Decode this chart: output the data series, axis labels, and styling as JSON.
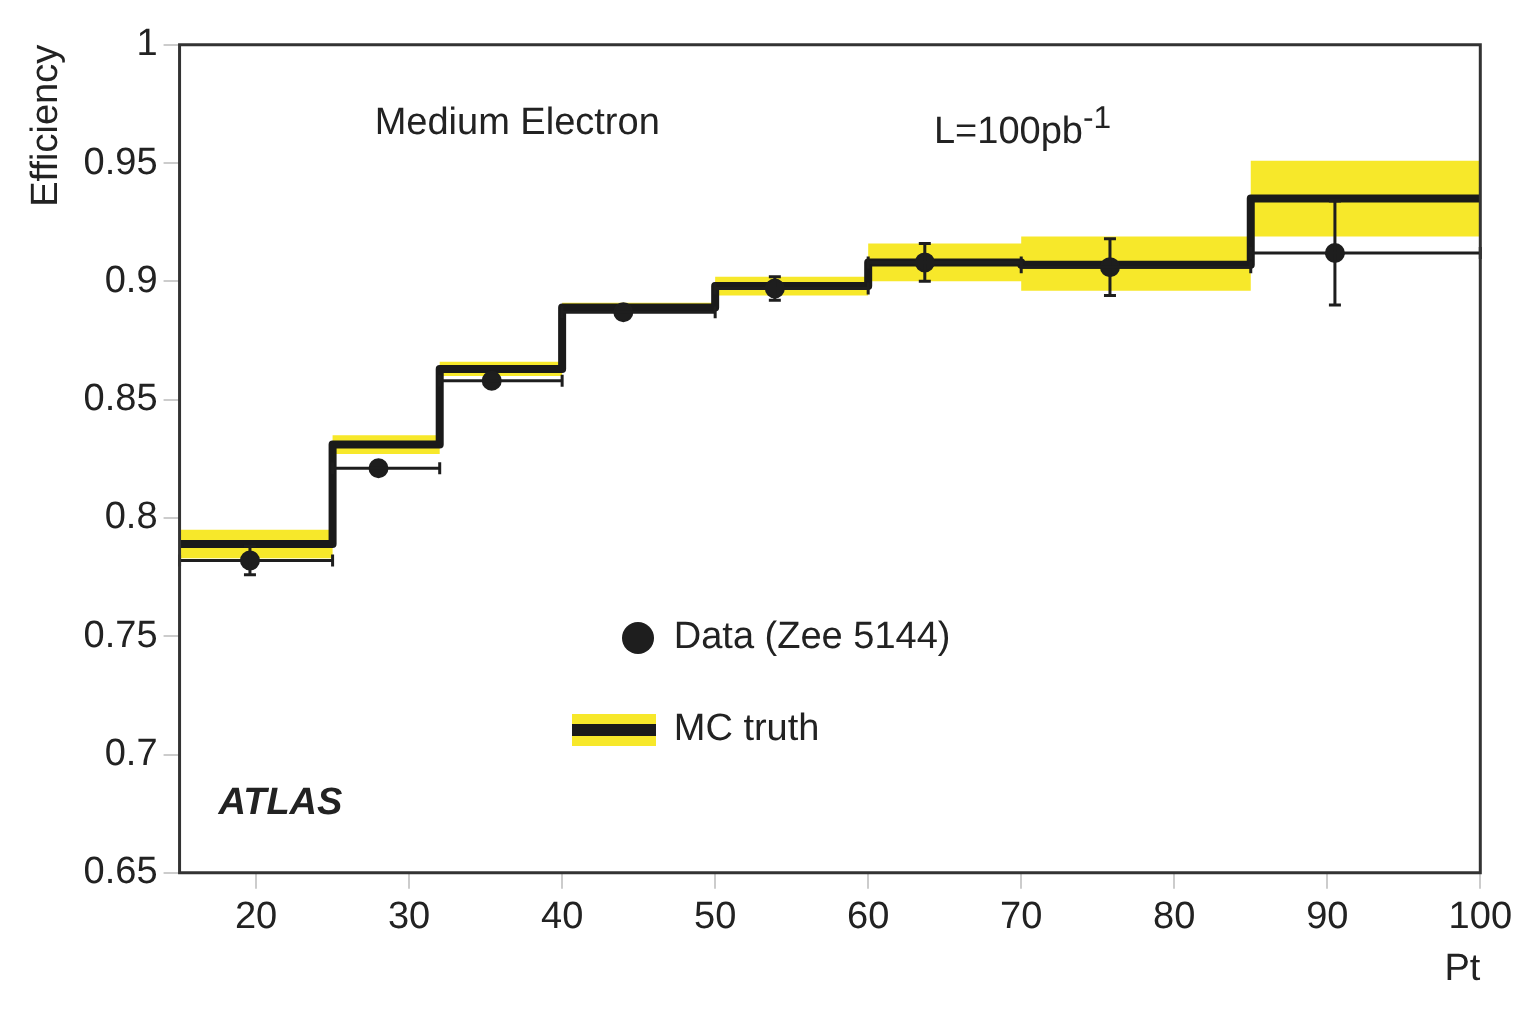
{
  "chart_data": {
    "type": "scatter",
    "xlabel": "Pt",
    "ylabel": "Efficiency",
    "xlim": [
      15,
      100
    ],
    "xticks": [
      20,
      30,
      40,
      50,
      60,
      70,
      80,
      90,
      100
    ],
    "ylim": [
      0.65,
      1
    ],
    "yticks": [
      0.65,
      0.7,
      0.75,
      0.8,
      0.85,
      0.9,
      0.95,
      1
    ],
    "grid": false,
    "legend": "bottom",
    "annotations": [
      "Medium Electron",
      "L=100pb$^{-1}$",
      "ATLAS"
    ],
    "series": [
      {
        "name": "Data (Zee 5144)",
        "marker": "circle",
        "color": "#1e1e1e",
        "x": [
          19.6,
          28,
          35.4,
          44,
          53.9,
          63.7,
          75.8,
          90.5
        ],
        "values": [
          0.782,
          0.821,
          0.858,
          0.887,
          0.897,
          0.908,
          0.906,
          0.912
        ],
        "errors": [
          0.006,
          null,
          null,
          null,
          0.005,
          0.008,
          0.012,
          0.022
        ],
        "xerrors": [
          [
            15,
            25
          ],
          [
            25,
            32
          ],
          [
            32,
            40
          ],
          [
            40,
            50
          ],
          [
            50,
            60
          ],
          [
            60,
            70
          ],
          [
            70,
            85
          ],
          [
            85,
            100
          ]
        ]
      },
      {
        "name": "MC truth",
        "type": "step",
        "color": "#1a1a1a",
        "x": [
          15,
          25,
          32,
          40,
          50,
          60,
          70,
          85,
          100
        ],
        "values": [
          0.789,
          0.831,
          0.863,
          0.889,
          0.898,
          0.908,
          0.907,
          0.935,
          0.935
        ],
        "lower": [
          0.783,
          0.827,
          0.86,
          0.887,
          0.894,
          0.9,
          0.896,
          0.919,
          0.919
        ],
        "upper": [
          0.795,
          0.835,
          0.866,
          0.891,
          0.902,
          0.916,
          0.919,
          0.951,
          0.951
        ]
      }
    ]
  }
}
